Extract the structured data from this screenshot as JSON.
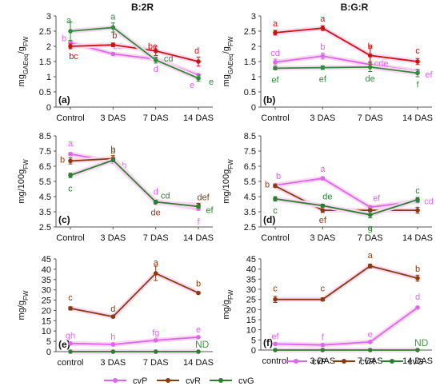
{
  "colors": {
    "cvP": "#dd66ee",
    "cvR": "#8b3a10",
    "cvG": "#2e7d32",
    "cvR_top": "#cc1111",
    "cvG_top": "#2e8b3a",
    "glow": "#fad8f0",
    "nd": "#3a9a3a"
  },
  "legend": {
    "cvP": "cvP",
    "cvR": "cvR",
    "cvG": "cvG"
  },
  "chart_data": [
    {
      "panel_label": "(a)",
      "title": "B:2R",
      "type": "line",
      "ylabel": "mg_GAEeq/g_FW",
      "ylim": [
        0,
        3
      ],
      "yticks": [
        "0",
        "0.5",
        "1",
        "1.5",
        "2",
        "2.5",
        "3"
      ],
      "categories": [
        "Control",
        "3 DAS",
        "7 DAS",
        "14 DAS"
      ],
      "series": [
        {
          "name": "cvP",
          "values": [
            2.12,
            1.75,
            1.58,
            1.05
          ],
          "err": [
            0.05,
            0.04,
            0.05,
            0.05
          ],
          "sig": [
            "b",
            "cd",
            "d",
            "e"
          ]
        },
        {
          "name": "cvR",
          "values": [
            2.0,
            2.05,
            1.85,
            1.5
          ],
          "err": [
            0.08,
            0.06,
            0.15,
            0.15
          ],
          "sig": [
            "bc",
            "b",
            "bc",
            "d"
          ]
        },
        {
          "name": "cvG",
          "values": [
            2.5,
            2.62,
            1.55,
            0.95
          ],
          "err": [
            0.3,
            0.15,
            0.1,
            0.1
          ],
          "sig": [
            "a",
            "a",
            "cd",
            "e"
          ]
        }
      ]
    },
    {
      "panel_label": "(b)",
      "title": "B:G:R",
      "type": "line",
      "ylabel": "mg_GAEeq/g_FW",
      "ylim": [
        0,
        3
      ],
      "yticks": [
        "0",
        "0.5",
        "1",
        "1.5",
        "2",
        "2.5",
        "3"
      ],
      "categories": [
        "Control",
        "3 DAS",
        "7 DAS",
        "14 DAS"
      ],
      "series": [
        {
          "name": "cvP",
          "values": [
            1.48,
            1.68,
            1.4,
            1.18
          ],
          "err": [
            0.1,
            0.1,
            0.1,
            0.05
          ],
          "sig": [
            "cd",
            "b",
            "cde",
            "ef"
          ]
        },
        {
          "name": "cvR",
          "values": [
            2.45,
            2.6,
            1.7,
            1.5
          ],
          "err": [
            0.08,
            0.08,
            0.3,
            0.1
          ],
          "sig": [
            "a",
            "a",
            "b",
            "c"
          ]
        },
        {
          "name": "cvG",
          "values": [
            1.28,
            1.3,
            1.32,
            1.12
          ],
          "err": [
            0.05,
            0.06,
            0.15,
            0.12
          ],
          "sig": [
            "ef",
            "ef",
            "de",
            "f"
          ]
        }
      ]
    },
    {
      "panel_label": "(c)",
      "title": "",
      "type": "line",
      "ylabel": "mg/100g_FW",
      "ylim": [
        2.5,
        8.5
      ],
      "yticks": [
        "2.5",
        "3.5",
        "4.5",
        "5.5",
        "6.5",
        "7.5",
        "8.5"
      ],
      "categories": [
        "Control",
        "3 DAS",
        "7 DAS",
        "14 DAS"
      ],
      "series": [
        {
          "name": "cvP",
          "values": [
            7.3,
            6.8,
            4.2,
            3.7
          ],
          "err": [
            0.1,
            0.1,
            0.1,
            0.1
          ],
          "sig": [
            "a",
            "b",
            "d",
            "f"
          ]
        },
        {
          "name": "cvR",
          "values": [
            6.85,
            7.0,
            4.1,
            3.95
          ],
          "err": [
            0.2,
            0.2,
            0.1,
            0.1
          ],
          "sig": [
            "b",
            "b",
            "de",
            "def"
          ]
        },
        {
          "name": "cvG",
          "values": [
            5.9,
            6.9,
            4.15,
            3.85
          ],
          "err": [
            0.15,
            0.1,
            0.1,
            0.1
          ],
          "sig": [
            "c",
            "b",
            "cd",
            "ef"
          ]
        }
      ]
    },
    {
      "panel_label": "(d)",
      "title": "",
      "type": "line",
      "ylabel": "mg/100g_FW",
      "ylim": [
        2.5,
        8.5
      ],
      "yticks": [
        "2.5",
        "3.5",
        "4.5",
        "5.5",
        "6.5",
        "7.5",
        "8.5"
      ],
      "categories": [
        "Control",
        "3 DAS",
        "7 DAS",
        "14 DAS"
      ],
      "series": [
        {
          "name": "cvP",
          "values": [
            5.25,
            5.7,
            3.8,
            4.2
          ],
          "err": [
            0.1,
            0.1,
            0.1,
            0.1
          ],
          "sig": [
            "b",
            "a",
            "ef",
            "cd"
          ]
        },
        {
          "name": "cvR",
          "values": [
            5.2,
            3.6,
            3.6,
            3.6
          ],
          "err": [
            0.1,
            0.15,
            0.1,
            0.2
          ],
          "sig": [
            "b",
            "ef",
            "",
            ""
          ]
        },
        {
          "name": "cvG",
          "values": [
            4.35,
            3.9,
            3.3,
            4.3
          ],
          "err": [
            0.15,
            0.1,
            0.2,
            0.15
          ],
          "sig": [
            "c",
            "de",
            "g",
            "c"
          ]
        }
      ]
    },
    {
      "panel_label": "(e)",
      "title": "",
      "type": "line",
      "ylabel": "mg/g_FW",
      "ylim": [
        0,
        45
      ],
      "yticks": [
        "0",
        "5",
        "10",
        "15",
        "20",
        "25",
        "30",
        "35",
        "40",
        "45"
      ],
      "categories": [
        "control",
        "3 DAS",
        "7 DAS",
        "14 DAS"
      ],
      "nd_text": "ND",
      "series": [
        {
          "name": "cvP",
          "values": [
            4.0,
            3.5,
            5.5,
            7.0
          ],
          "err": [
            0.5,
            0.3,
            0.5,
            0.3
          ],
          "sig": [
            "gh",
            "h",
            "fg",
            "e"
          ]
        },
        {
          "name": "cvR",
          "values": [
            21.0,
            17.0,
            38.0,
            28.5
          ],
          "err": [
            0.8,
            0.5,
            3.5,
            0.5
          ],
          "sig": [
            "c",
            "d",
            "a",
            "b"
          ]
        },
        {
          "name": "cvG",
          "values": [
            0,
            0,
            0,
            0
          ],
          "err": [
            0,
            0,
            0,
            0
          ],
          "sig": [
            "",
            "",
            "",
            ""
          ]
        }
      ]
    },
    {
      "panel_label": "(f)",
      "title": "",
      "type": "line",
      "ylabel": "mg/g_FW",
      "ylim": [
        0,
        45
      ],
      "yticks": [
        "0",
        "5",
        "10",
        "15",
        "20",
        "25",
        "30",
        "35",
        "40",
        "45"
      ],
      "categories": [
        "control",
        "3 DAS",
        "7 DAS",
        "14 DAS"
      ],
      "nd_text": "ND",
      "series": [
        {
          "name": "cvP",
          "values": [
            3.0,
            2.5,
            4.0,
            21.0
          ],
          "err": [
            0.3,
            0.2,
            0.3,
            0.5
          ],
          "sig": [
            "ef",
            "f",
            "e",
            "d"
          ]
        },
        {
          "name": "cvR",
          "values": [
            25.0,
            25.0,
            41.5,
            35.5
          ],
          "err": [
            1.5,
            0.8,
            1.0,
            1.5
          ],
          "sig": [
            "c",
            "c",
            "a",
            "b"
          ]
        },
        {
          "name": "cvG",
          "values": [
            0,
            0,
            0,
            0
          ],
          "err": [
            0,
            0,
            0,
            0
          ],
          "sig": [
            "",
            "",
            "",
            ""
          ]
        }
      ]
    }
  ]
}
